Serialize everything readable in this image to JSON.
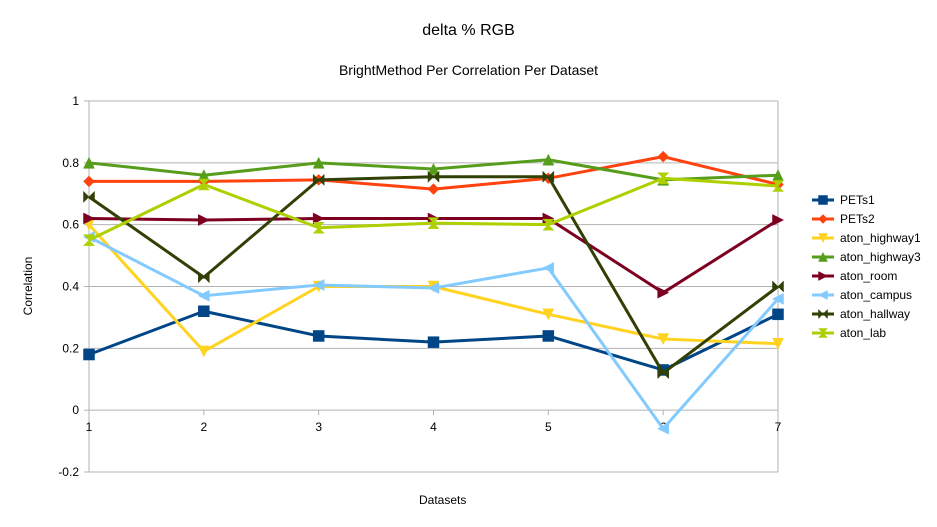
{
  "chart_data": {
    "type": "line",
    "title": "delta % RGB",
    "subtitle": "BrightMethod  Per Correlation Per Dataset",
    "xlabel": "Datasets",
    "ylabel": "Correlation",
    "x": [
      1,
      2,
      3,
      4,
      5,
      6,
      7
    ],
    "x_tick_labels": [
      "1",
      "2",
      "3",
      "4",
      "5",
      "6",
      "7"
    ],
    "ylim": [
      -0.2,
      1
    ],
    "y_ticks": [
      -0.2,
      0,
      0.2,
      0.4,
      0.6,
      0.8,
      1
    ],
    "y_tick_labels": [
      "-0.2",
      "0",
      "0.2",
      "0.4",
      "0.6",
      "0.8",
      "1"
    ],
    "grid": "horizontal",
    "legend_position": "right",
    "series": [
      {
        "name": "PETs1",
        "color": "#004586",
        "marker": "square",
        "values": [
          0.18,
          0.32,
          0.24,
          0.22,
          0.24,
          0.13,
          0.31
        ]
      },
      {
        "name": "PETs2",
        "color": "#ff420e",
        "marker": "diamond",
        "values": [
          0.74,
          0.74,
          0.745,
          0.715,
          0.75,
          0.82,
          0.73
        ]
      },
      {
        "name": "aton_highway1",
        "color": "#ffd320",
        "marker": "triangle-down",
        "values": [
          0.6,
          0.19,
          0.4,
          0.4,
          0.31,
          0.23,
          0.215
        ]
      },
      {
        "name": "aton_highway3",
        "color": "#579d1c",
        "marker": "triangle-up",
        "values": [
          0.8,
          0.76,
          0.8,
          0.78,
          0.81,
          0.745,
          0.76
        ]
      },
      {
        "name": "aton_room",
        "color": "#7e0021",
        "marker": "triangle-right",
        "values": [
          0.62,
          0.615,
          0.62,
          0.62,
          0.62,
          0.38,
          0.615
        ]
      },
      {
        "name": "aton_campus",
        "color": "#83caff",
        "marker": "triangle-left",
        "values": [
          0.56,
          0.37,
          0.405,
          0.395,
          0.46,
          -0.06,
          0.36
        ]
      },
      {
        "name": "aton_hallway",
        "color": "#314004",
        "marker": "bowtie",
        "values": [
          0.69,
          0.43,
          0.745,
          0.755,
          0.755,
          0.12,
          0.4
        ]
      },
      {
        "name": "aton_lab",
        "color": "#aecf00",
        "marker": "hourglass",
        "values": [
          0.55,
          0.73,
          0.59,
          0.605,
          0.6,
          0.75,
          0.725
        ]
      }
    ]
  }
}
